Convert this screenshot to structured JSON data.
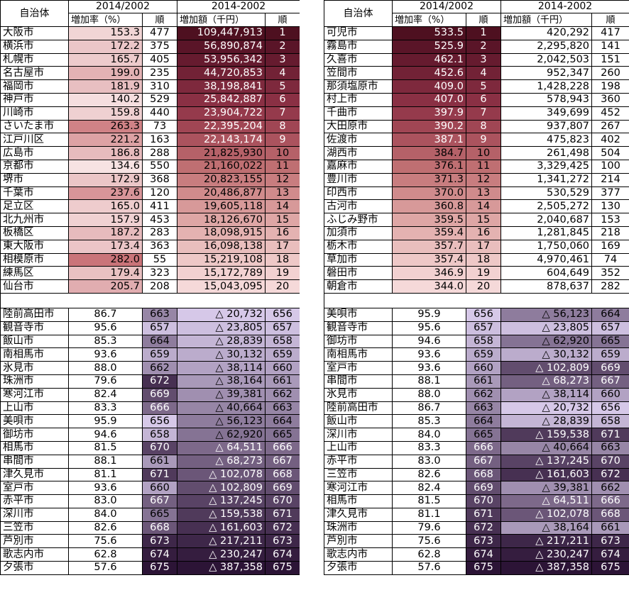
{
  "headers": {
    "entity": "自治体",
    "group_a": "2014/2002",
    "group_b": "2014-2002",
    "rate": "増加率（%）",
    "rank": "順",
    "amount": "増加額（千円）"
  },
  "left_top": [
    {
      "name": "大阪市",
      "rate": "153.3",
      "r1": "477",
      "amount": "109,447,913",
      "r2": "1"
    },
    {
      "name": "横浜市",
      "rate": "172.2",
      "r1": "375",
      "amount": "56,890,874",
      "r2": "2"
    },
    {
      "name": "札幌市",
      "rate": "165.7",
      "r1": "405",
      "amount": "53,956,342",
      "r2": "3"
    },
    {
      "name": "名古屋市",
      "rate": "199.0",
      "r1": "235",
      "amount": "44,720,853",
      "r2": "4"
    },
    {
      "name": "福岡市",
      "rate": "181.9",
      "r1": "310",
      "amount": "38,198,841",
      "r2": "5"
    },
    {
      "name": "神戸市",
      "rate": "140.2",
      "r1": "529",
      "amount": "25,842,887",
      "r2": "6"
    },
    {
      "name": "川崎市",
      "rate": "159.8",
      "r1": "440",
      "amount": "23,904,722",
      "r2": "7"
    },
    {
      "name": "さいたま市",
      "rate": "263.3",
      "r1": "73",
      "amount": "22,395,204",
      "r2": "8"
    },
    {
      "name": "江戸川区",
      "rate": "221.2",
      "r1": "163",
      "amount": "22,143,174",
      "r2": "9"
    },
    {
      "name": "広島市",
      "rate": "186.8",
      "r1": "288",
      "amount": "21,825,930",
      "r2": "10"
    },
    {
      "name": "京都市",
      "rate": "134.6",
      "r1": "550",
      "amount": "21,160,022",
      "r2": "11"
    },
    {
      "name": "堺市",
      "rate": "172.9",
      "r1": "368",
      "amount": "20,823,155",
      "r2": "12"
    },
    {
      "name": "千葉市",
      "rate": "237.6",
      "r1": "120",
      "amount": "20,486,877",
      "r2": "13"
    },
    {
      "name": "足立区",
      "rate": "165.0",
      "r1": "411",
      "amount": "19,605,118",
      "r2": "14"
    },
    {
      "name": "北九州市",
      "rate": "157.9",
      "r1": "453",
      "amount": "18,126,670",
      "r2": "15"
    },
    {
      "name": "板橋区",
      "rate": "187.2",
      "r1": "283",
      "amount": "18,098,915",
      "r2": "16"
    },
    {
      "name": "東大阪市",
      "rate": "173.4",
      "r1": "363",
      "amount": "16,098,138",
      "r2": "17"
    },
    {
      "name": "相模原市",
      "rate": "282.0",
      "r1": "55",
      "amount": "15,219,108",
      "r2": "18"
    },
    {
      "name": "練馬区",
      "rate": "179.4",
      "r1": "323",
      "amount": "15,172,789",
      "r2": "19"
    },
    {
      "name": "仙台市",
      "rate": "205.7",
      "r1": "208",
      "amount": "15,043,095",
      "r2": "20"
    }
  ],
  "left_bottom": [
    {
      "name": "陸前高田市",
      "rate": "86.7",
      "r1": "663",
      "amount": "△ 20,732",
      "r2": "656"
    },
    {
      "name": "観音寺市",
      "rate": "95.6",
      "r1": "657",
      "amount": "△ 23,805",
      "r2": "657"
    },
    {
      "name": "飯山市",
      "rate": "85.3",
      "r1": "664",
      "amount": "△ 28,839",
      "r2": "658"
    },
    {
      "name": "南相馬市",
      "rate": "93.6",
      "r1": "659",
      "amount": "△ 30,132",
      "r2": "659"
    },
    {
      "name": "氷見市",
      "rate": "88.0",
      "r1": "662",
      "amount": "△ 38,114",
      "r2": "660"
    },
    {
      "name": "珠洲市",
      "rate": "79.6",
      "r1": "672",
      "amount": "△ 38,164",
      "r2": "661"
    },
    {
      "name": "寒河江市",
      "rate": "82.4",
      "r1": "669",
      "amount": "△ 39,381",
      "r2": "662"
    },
    {
      "name": "上山市",
      "rate": "83.3",
      "r1": "666",
      "amount": "△ 40,664",
      "r2": "663"
    },
    {
      "name": "美唄市",
      "rate": "95.9",
      "r1": "656",
      "amount": "△ 56,123",
      "r2": "664"
    },
    {
      "name": "御坊市",
      "rate": "94.6",
      "r1": "658",
      "amount": "△ 62,920",
      "r2": "665"
    },
    {
      "name": "相馬市",
      "rate": "81.5",
      "r1": "670",
      "amount": "△ 64,511",
      "r2": "666"
    },
    {
      "name": "串間市",
      "rate": "88.1",
      "r1": "661",
      "amount": "△ 68,273",
      "r2": "667"
    },
    {
      "name": "津久見市",
      "rate": "81.1",
      "r1": "671",
      "amount": "△ 102,078",
      "r2": "668"
    },
    {
      "name": "室戸市",
      "rate": "93.6",
      "r1": "660",
      "amount": "△ 102,809",
      "r2": "669"
    },
    {
      "name": "赤平市",
      "rate": "83.0",
      "r1": "667",
      "amount": "△ 137,245",
      "r2": "670"
    },
    {
      "name": "深川市",
      "rate": "84.0",
      "r1": "665",
      "amount": "△ 159,538",
      "r2": "671"
    },
    {
      "name": "三笠市",
      "rate": "82.6",
      "r1": "668",
      "amount": "△ 161,603",
      "r2": "672"
    },
    {
      "name": "芦別市",
      "rate": "75.6",
      "r1": "673",
      "amount": "△ 217,211",
      "r2": "673"
    },
    {
      "name": "歌志内市",
      "rate": "62.8",
      "r1": "674",
      "amount": "△ 230,247",
      "r2": "674"
    },
    {
      "name": "夕張市",
      "rate": "57.6",
      "r1": "675",
      "amount": "△ 387,358",
      "r2": "675"
    }
  ],
  "right_top": [
    {
      "name": "可児市",
      "rate": "533.5",
      "r1": "1",
      "amount": "420,292",
      "r2": "417"
    },
    {
      "name": "霧島市",
      "rate": "525.9",
      "r1": "2",
      "amount": "2,295,820",
      "r2": "141"
    },
    {
      "name": "久喜市",
      "rate": "462.1",
      "r1": "3",
      "amount": "2,042,503",
      "r2": "151"
    },
    {
      "name": "笠間市",
      "rate": "452.6",
      "r1": "4",
      "amount": "952,347",
      "r2": "260"
    },
    {
      "name": "那須塩原市",
      "rate": "409.0",
      "r1": "5",
      "amount": "1,428,228",
      "r2": "198"
    },
    {
      "name": "村上市",
      "rate": "407.0",
      "r1": "6",
      "amount": "578,943",
      "r2": "360"
    },
    {
      "name": "千曲市",
      "rate": "397.9",
      "r1": "7",
      "amount": "349,699",
      "r2": "452"
    },
    {
      "name": "大田原市",
      "rate": "390.2",
      "r1": "8",
      "amount": "937,807",
      "r2": "267"
    },
    {
      "name": "佐渡市",
      "rate": "387.1",
      "r1": "9",
      "amount": "475,823",
      "r2": "402"
    },
    {
      "name": "湖西市",
      "rate": "384.7",
      "r1": "10",
      "amount": "261,498",
      "r2": "504"
    },
    {
      "name": "嘉麻市",
      "rate": "376.1",
      "r1": "11",
      "amount": "3,329,425",
      "r2": "100"
    },
    {
      "name": "豊川市",
      "rate": "371.3",
      "r1": "12",
      "amount": "1,341,272",
      "r2": "214"
    },
    {
      "name": "印西市",
      "rate": "370.0",
      "r1": "13",
      "amount": "530,529",
      "r2": "377"
    },
    {
      "name": "古河市",
      "rate": "360.8",
      "r1": "14",
      "amount": "2,505,272",
      "r2": "130"
    },
    {
      "name": "ふじみ野市",
      "rate": "359.5",
      "r1": "15",
      "amount": "2,040,687",
      "r2": "153"
    },
    {
      "name": "加須市",
      "rate": "359.4",
      "r1": "16",
      "amount": "1,281,845",
      "r2": "218"
    },
    {
      "name": "栃木市",
      "rate": "357.7",
      "r1": "17",
      "amount": "1,750,060",
      "r2": "169"
    },
    {
      "name": "草加市",
      "rate": "357.4",
      "r1": "18",
      "amount": "4,970,461",
      "r2": "74"
    },
    {
      "name": "磐田市",
      "rate": "346.9",
      "r1": "19",
      "amount": "604,649",
      "r2": "352"
    },
    {
      "name": "朝倉市",
      "rate": "344.0",
      "r1": "20",
      "amount": "878,637",
      "r2": "282"
    }
  ],
  "right_bottom": [
    {
      "name": "美唄市",
      "rate": "95.9",
      "r1": "656",
      "amount": "△ 56,123",
      "r2": "664"
    },
    {
      "name": "観音寺市",
      "rate": "95.6",
      "r1": "657",
      "amount": "△ 23,805",
      "r2": "657"
    },
    {
      "name": "御坊市",
      "rate": "94.6",
      "r1": "658",
      "amount": "△ 62,920",
      "r2": "665"
    },
    {
      "name": "南相馬市",
      "rate": "93.6",
      "r1": "659",
      "amount": "△ 30,132",
      "r2": "659"
    },
    {
      "name": "室戸市",
      "rate": "93.6",
      "r1": "660",
      "amount": "△ 102,809",
      "r2": "669"
    },
    {
      "name": "串間市",
      "rate": "88.1",
      "r1": "661",
      "amount": "△ 68,273",
      "r2": "667"
    },
    {
      "name": "氷見市",
      "rate": "88.0",
      "r1": "662",
      "amount": "△ 38,114",
      "r2": "660"
    },
    {
      "name": "陸前高田市",
      "rate": "86.7",
      "r1": "663",
      "amount": "△ 20,732",
      "r2": "656"
    },
    {
      "name": "飯山市",
      "rate": "85.3",
      "r1": "664",
      "amount": "△ 28,839",
      "r2": "658"
    },
    {
      "name": "深川市",
      "rate": "84.0",
      "r1": "665",
      "amount": "△ 159,538",
      "r2": "671"
    },
    {
      "name": "上山市",
      "rate": "83.3",
      "r1": "666",
      "amount": "△ 40,664",
      "r2": "663"
    },
    {
      "name": "赤平市",
      "rate": "83.0",
      "r1": "667",
      "amount": "△ 137,245",
      "r2": "670"
    },
    {
      "name": "三笠市",
      "rate": "82.6",
      "r1": "668",
      "amount": "△ 161,603",
      "r2": "672"
    },
    {
      "name": "寒河江市",
      "rate": "82.4",
      "r1": "669",
      "amount": "△ 39,381",
      "r2": "662"
    },
    {
      "name": "相馬市",
      "rate": "81.5",
      "r1": "670",
      "amount": "△ 64,511",
      "r2": "666"
    },
    {
      "name": "津久見市",
      "rate": "81.1",
      "r1": "671",
      "amount": "△ 102,078",
      "r2": "668"
    },
    {
      "name": "珠洲市",
      "rate": "79.6",
      "r1": "672",
      "amount": "△ 38,164",
      "r2": "661"
    },
    {
      "name": "芦別市",
      "rate": "75.6",
      "r1": "673",
      "amount": "△ 217,211",
      "r2": "673"
    },
    {
      "name": "歌志内市",
      "rate": "62.8",
      "r1": "674",
      "amount": "△ 230,247",
      "r2": "674"
    },
    {
      "name": "夕張市",
      "rate": "57.6",
      "r1": "675",
      "amount": "△ 387,358",
      "r2": "675"
    }
  ]
}
